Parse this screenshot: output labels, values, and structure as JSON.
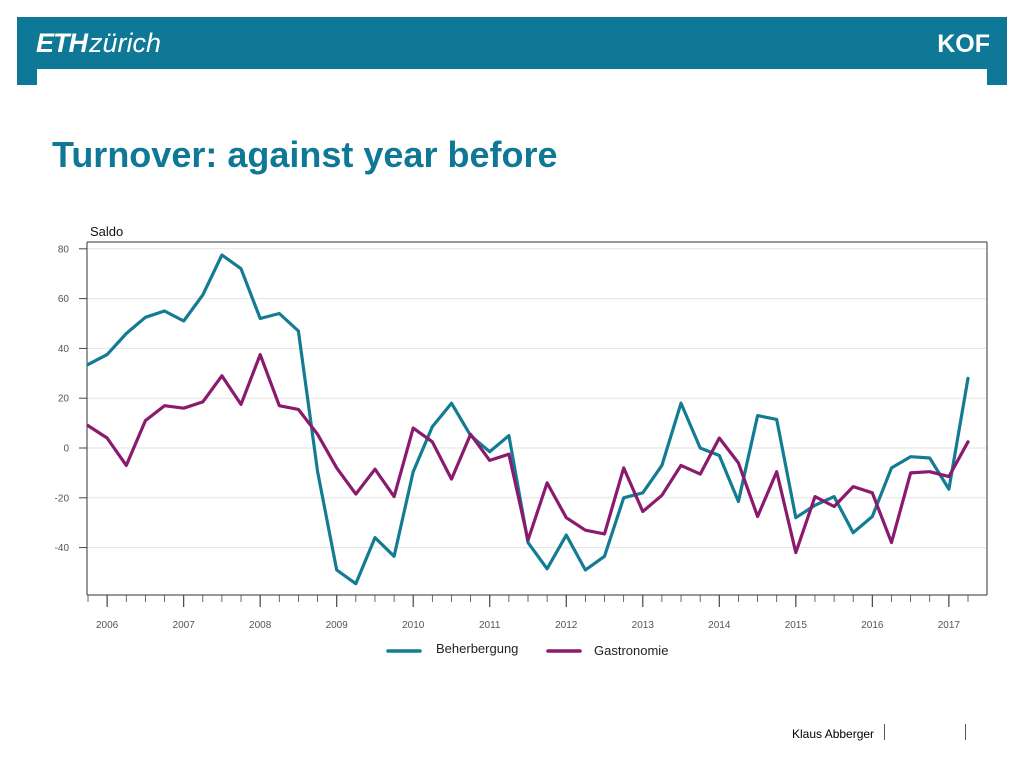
{
  "header": {
    "logo_left_bold": "ETH",
    "logo_left_rest": "zürich",
    "logo_right": "KOF",
    "accent_color": "#0f7896"
  },
  "slide": {
    "title": "Turnover: against year before"
  },
  "footer": {
    "author": "Klaus Abberger"
  },
  "chart_data": {
    "type": "line",
    "title": "",
    "xlabel": "",
    "ylabel": "Saldo",
    "ylim": [
      -60,
      83
    ],
    "yticks": [
      80,
      60,
      40,
      20,
      0,
      -20,
      -40
    ],
    "x_year_labels": [
      "2006",
      "2007",
      "2008",
      "2009",
      "2010",
      "2011",
      "2012",
      "2013",
      "2014",
      "2015",
      "2016",
      "2017"
    ],
    "x_frequency": "quarterly",
    "x_start": "2005 Q4",
    "x_end": "2017 Q1",
    "grid": "horizontal",
    "legend_position": "bottom",
    "series": [
      {
        "name": "Beherbergung",
        "color": "#137c93",
        "values": [
          33.5,
          37.5,
          46,
          52.5,
          55,
          51,
          61.5,
          77.5,
          72,
          52,
          54,
          47,
          -9.5,
          -49,
          -54.5,
          -36,
          -43.5,
          -9.5,
          8.5,
          18,
          5,
          -1.5,
          5,
          -38,
          -48.5,
          -35,
          -49,
          -43.5,
          -20,
          -18,
          -7,
          18,
          0,
          -3,
          -21.5,
          13,
          11.5,
          -28,
          -23,
          -19.5,
          -34,
          -27.5,
          -8,
          -3.5,
          -4,
          -16.5,
          28
        ]
      },
      {
        "name": "Gastronomie",
        "color": "#8a1a6e",
        "values": [
          9,
          4,
          -7,
          11,
          17,
          16,
          18.5,
          29,
          17.5,
          37.5,
          17,
          15.5,
          5.5,
          -8,
          -18.5,
          -8.5,
          -19.5,
          8,
          2.5,
          -12.5,
          5.5,
          -5,
          -2.5,
          -37,
          -14,
          -28,
          -33,
          -34.5,
          -8,
          -25.5,
          -19,
          -7,
          -10.5,
          4,
          -6,
          -27.5,
          -9.5,
          -42,
          -19.5,
          -23.5,
          -15.5,
          -18,
          -38,
          -10,
          -9.5,
          -11.5,
          2.5
        ]
      }
    ]
  }
}
